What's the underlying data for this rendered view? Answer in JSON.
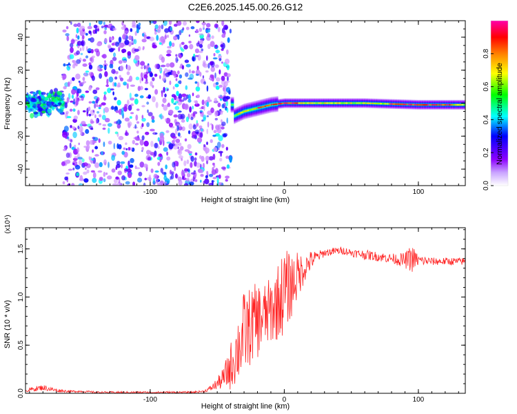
{
  "figure": {
    "title": "C2E6.2025.145.00.26.G12"
  },
  "chart_data": [
    {
      "type": "heatmap",
      "title": "C2E6.2025.145.00.26.G12",
      "xlabel": "Height of straight line (km)",
      "ylabel": "Frequency (Hz)",
      "xlim": [
        -193,
        135
      ],
      "ylim": [
        -50,
        50
      ],
      "x_ticks": [
        -100,
        0,
        100
      ],
      "y_ticks": [
        40,
        20,
        0,
        -20,
        -40
      ],
      "x_tick_labels": [
        "-100",
        "0",
        "100"
      ],
      "y_tick_labels": [
        "40",
        "20",
        "0",
        "-20",
        "-40"
      ],
      "colorbar": {
        "label": "Normalized spectral amplitude",
        "range": [
          0,
          1
        ],
        "ticks": [
          0.0,
          0.2,
          0.4,
          0.6,
          0.8
        ],
        "tick_labels": [
          "0.0",
          "0.2",
          "0.4",
          "0.6",
          "0.8"
        ],
        "colormap": [
          "#ffffff",
          "#8c00ff",
          "#0000ff",
          "#00ffff",
          "#00ff00",
          "#ffff00",
          "#ff8000",
          "#ff0000",
          "#ff00ff"
        ]
      },
      "regions": [
        {
          "x": [
            -193,
            -165
          ],
          "freq_center": 0,
          "freq_halfwidth": 6,
          "amplitude": 0.45
        },
        {
          "x": [
            -165,
            -40
          ],
          "freq_center": 0,
          "freq_halfwidth": 50,
          "amplitude": 0.15
        },
        {
          "x": [
            -40,
            135
          ],
          "freq_center": 0,
          "freq_halfwidth": 3,
          "amplitude": 0.7
        }
      ],
      "centerline_points": [
        {
          "x": -38,
          "f": -8
        },
        {
          "x": -30,
          "f": -5
        },
        {
          "x": -20,
          "f": -3
        },
        {
          "x": -10,
          "f": -1
        },
        {
          "x": 0,
          "f": 0
        },
        {
          "x": 20,
          "f": 0
        },
        {
          "x": 60,
          "f": 0
        },
        {
          "x": 100,
          "f": -1
        },
        {
          "x": 135,
          "f": -1
        }
      ]
    },
    {
      "type": "line",
      "xlabel": "Height of straight line (km)",
      "ylabel": "SNR (10 * v/v)",
      "y_multiplier": "(x10⁴)",
      "xlim": [
        -193,
        135
      ],
      "ylim": [
        0,
        1.72
      ],
      "x_ticks": [
        -100,
        0,
        100
      ],
      "y_ticks": [
        0.0,
        0.5,
        1.0,
        1.5
      ],
      "x_tick_labels": [
        "-100",
        "0",
        "100"
      ],
      "y_tick_labels": [
        "0.0",
        "0.5",
        "1.0",
        "1.5"
      ],
      "color": "#ff0000",
      "series": [
        {
          "x": [
            -193,
            -180,
            -170,
            -160,
            -150,
            -140,
            -130,
            -120,
            -110,
            -100,
            -90,
            -80,
            -70,
            -60,
            -55,
            -50,
            -45,
            -40,
            -35,
            -30,
            -25,
            -20,
            -15,
            -10,
            -5,
            0,
            5,
            10,
            15,
            20,
            25,
            30,
            35,
            40,
            45,
            50,
            60,
            70,
            80,
            90,
            95,
            100,
            110,
            120,
            135
          ],
          "values": [
            0.03,
            0.06,
            0.03,
            0.02,
            0.02,
            0.01,
            0.01,
            0.01,
            0.01,
            0.01,
            0.01,
            0.01,
            0.01,
            0.02,
            0.05,
            0.1,
            0.16,
            0.28,
            0.45,
            0.62,
            0.7,
            0.76,
            0.8,
            0.85,
            0.95,
            1.05,
            1.12,
            1.22,
            1.3,
            1.38,
            1.42,
            1.46,
            1.47,
            1.48,
            1.48,
            1.46,
            1.44,
            1.42,
            1.4,
            1.38,
            1.4,
            1.38,
            1.37,
            1.37,
            1.37
          ],
          "noise_amplitude": [
            0.02,
            0.03,
            0.02,
            0.01,
            0.01,
            0.01,
            0.01,
            0.01,
            0.01,
            0.01,
            0.01,
            0.01,
            0.01,
            0.01,
            0.03,
            0.06,
            0.12,
            0.25,
            0.35,
            0.45,
            0.4,
            0.4,
            0.35,
            0.35,
            0.4,
            0.45,
            0.35,
            0.25,
            0.15,
            0.1,
            0.06,
            0.04,
            0.04,
            0.04,
            0.04,
            0.04,
            0.05,
            0.05,
            0.05,
            0.08,
            0.15,
            0.06,
            0.04,
            0.04,
            0.04
          ]
        }
      ]
    }
  ]
}
